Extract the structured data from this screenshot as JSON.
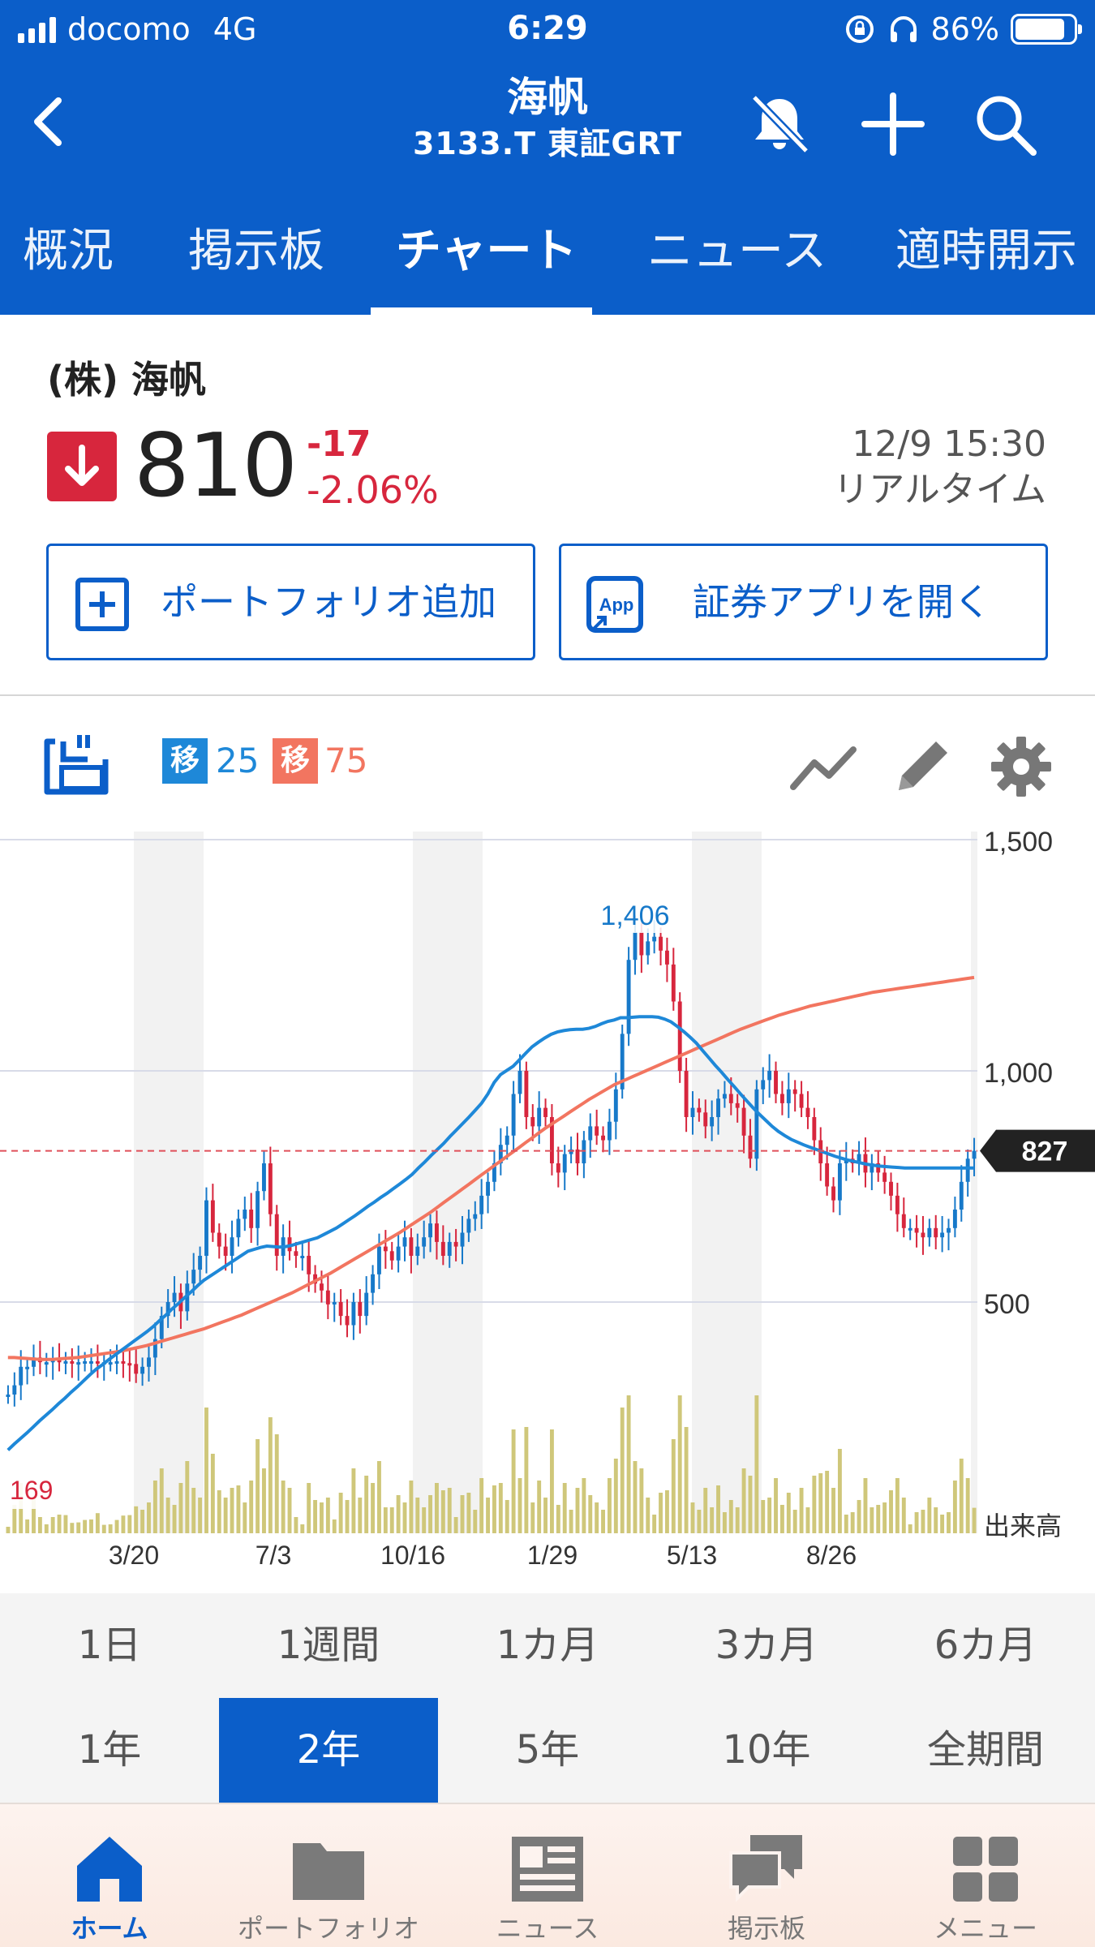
{
  "status_bar": {
    "carrier": "docomo",
    "network": "4G",
    "time": "6:29",
    "battery": "86%"
  },
  "header": {
    "title": "海帆",
    "subtitle": "3133.T 東証GRT",
    "icons": [
      "back-arrow-icon",
      "bell-off-icon",
      "plus-icon",
      "search-icon"
    ]
  },
  "tabs": [
    {
      "label": "概況"
    },
    {
      "label": "掲示板"
    },
    {
      "label": "チャート"
    },
    {
      "label": "ニュース"
    },
    {
      "label": "適時開示"
    }
  ],
  "active_tab": "チャート",
  "quote": {
    "company": "(株) 海帆",
    "price": "810",
    "change": "-17",
    "change_pct": "-2.06%",
    "date": "12/9 15:30",
    "realtime": "リアルタイム",
    "direction": "down"
  },
  "buttons": {
    "portfolio_add": "ポートフォリオ追加",
    "open_app": "証券アプリを開く",
    "app_icon_text": "App"
  },
  "chart_toolbar": {
    "ma_badge": "移",
    "ma_short": "25",
    "ma_long": "75",
    "icons": [
      "chart-settings-toggle-icon",
      "line-chart-icon",
      "pencil-icon",
      "gear-icon"
    ]
  },
  "colors": {
    "brand": "#0b5ec9",
    "down": "#d7263d",
    "ma25": "#1e88d8",
    "ma75": "#f27560",
    "volume": "#cfc77a"
  },
  "chart_data": {
    "type": "candlestick",
    "period": "2年",
    "ylim": [
      0,
      1500
    ],
    "y_ticks": [
      {
        "v": 1500,
        "label": "1,500"
      },
      {
        "v": 1000,
        "label": "1,000"
      },
      {
        "v": 500,
        "label": "500"
      }
    ],
    "x_ticks": [
      "3/20",
      "7/3",
      "10/16",
      "1/29",
      "5/13",
      "8/26"
    ],
    "high_label": "1,406",
    "low_label": "169",
    "current_price_label": "827",
    "volume_label": "出来高",
    "closes": [
      300,
      320,
      360,
      360,
      380,
      370,
      370,
      375,
      370,
      372,
      368,
      370,
      372,
      372,
      368,
      370,
      370,
      372,
      368,
      366,
      345,
      360,
      380,
      420,
      470,
      500,
      520,
      480,
      540,
      570,
      600,
      720,
      650,
      620,
      600,
      640,
      680,
      700,
      660,
      740,
      800,
      690,
      600,
      640,
      610,
      600,
      600,
      560,
      540,
      525,
      495,
      500,
      470,
      450,
      500,
      470,
      520,
      560,
      620,
      610,
      590,
      620,
      640,
      600,
      620,
      640,
      670,
      630,
      600,
      630,
      620,
      650,
      680,
      690,
      730,
      760,
      800,
      840,
      860,
      950,
      1000,
      900,
      880,
      920,
      900,
      800,
      780,
      820,
      830,
      800,
      850,
      880,
      860,
      850,
      890,
      960,
      1080,
      1240,
      1300,
      1250,
      1280,
      1290,
      1260,
      1230,
      1150,
      1000,
      900,
      920,
      910,
      880,
      900,
      940,
      950,
      930,
      920,
      860,
      810,
      960,
      980,
      1000,
      950,
      930,
      960,
      950,
      920,
      900,
      850,
      800,
      750,
      720,
      800,
      810,
      800,
      820,
      780,
      800,
      780,
      760,
      730,
      690,
      660,
      660,
      650,
      640,
      660,
      640,
      650,
      660,
      700,
      760,
      810,
      827
    ],
    "ma25": [
      180,
      193,
      205,
      217,
      230,
      243,
      255,
      267,
      280,
      292,
      305,
      317,
      330,
      343,
      355,
      365,
      376,
      386,
      396,
      406,
      416,
      426,
      436,
      447,
      460,
      472,
      485,
      497,
      510,
      522,
      535,
      547,
      556,
      565,
      574,
      583,
      592,
      601,
      610,
      614,
      618,
      621,
      620,
      619,
      620,
      623,
      627,
      631,
      635,
      639,
      646,
      653,
      660,
      669,
      678,
      687,
      697,
      707,
      716,
      726,
      735,
      745,
      755,
      765,
      776,
      790,
      803,
      817,
      830,
      843,
      858,
      872,
      886,
      900,
      915,
      930,
      950,
      975,
      992,
      1001,
      1010,
      1024,
      1038,
      1052,
      1062,
      1071,
      1079,
      1084,
      1087,
      1089,
      1090,
      1090,
      1092,
      1096,
      1102,
      1107,
      1110,
      1115,
      1115,
      1116,
      1117,
      1117,
      1117,
      1116,
      1112,
      1106,
      1096,
      1085,
      1073,
      1060,
      1044,
      1028,
      1012,
      997,
      981,
      966,
      950,
      935,
      920,
      906,
      893,
      880,
      869,
      860,
      852,
      846,
      840,
      835,
      830,
      825,
      820,
      815,
      811,
      807,
      804,
      801,
      798,
      796,
      794,
      793,
      792,
      791,
      790,
      790,
      790,
      790,
      790,
      790,
      790,
      790,
      790,
      790,
      790,
      790
    ],
    "ma75": [
      380,
      380,
      379,
      378,
      377,
      376,
      376,
      376,
      377,
      378,
      379,
      380,
      382,
      384,
      386,
      388,
      390,
      392,
      394,
      397,
      400,
      403,
      406,
      410,
      414,
      418,
      422,
      426,
      430,
      434,
      438,
      442,
      447,
      452,
      457,
      462,
      467,
      472,
      478,
      484,
      490,
      496,
      502,
      508,
      514,
      520,
      527,
      534,
      541,
      548,
      555,
      562,
      570,
      578,
      586,
      594,
      602,
      610,
      618,
      626,
      634,
      642,
      650,
      659,
      668,
      677,
      686,
      695,
      705,
      715,
      725,
      735,
      745,
      755,
      765,
      775,
      785,
      795,
      805,
      815,
      825,
      835,
      845,
      855,
      865,
      875,
      884,
      893,
      902,
      911,
      920,
      929,
      938,
      946,
      954,
      962,
      970,
      976,
      982,
      988,
      994,
      1000,
      1006,
      1012,
      1018,
      1024,
      1030,
      1036,
      1042,
      1048,
      1054,
      1060,
      1066,
      1072,
      1078,
      1084,
      1090,
      1095,
      1100,
      1105,
      1110,
      1115,
      1120,
      1124,
      1128,
      1132,
      1136,
      1140,
      1143,
      1146,
      1149,
      1152,
      1155,
      1158,
      1161,
      1164,
      1167,
      1170,
      1172,
      1174,
      1176,
      1178,
      1180,
      1182,
      1184,
      1186,
      1188,
      1190,
      1192,
      1194,
      1196,
      1198,
      1200,
      1202
    ]
  },
  "periods": [
    {
      "label": "1日"
    },
    {
      "label": "1週間"
    },
    {
      "label": "1カ月"
    },
    {
      "label": "3カ月"
    },
    {
      "label": "6カ月"
    },
    {
      "label": "1年"
    },
    {
      "label": "2年"
    },
    {
      "label": "5年"
    },
    {
      "label": "10年"
    },
    {
      "label": "全期間"
    }
  ],
  "active_period": "2年",
  "bottom_nav": [
    {
      "label": "ホーム",
      "icon": "home-icon"
    },
    {
      "label": "ポートフォリオ",
      "icon": "folder-icon"
    },
    {
      "label": "ニュース",
      "icon": "newspaper-icon"
    },
    {
      "label": "掲示板",
      "icon": "chat-bubbles-icon"
    },
    {
      "label": "メニュー",
      "icon": "grid-menu-icon"
    }
  ],
  "active_nav": "ホーム"
}
